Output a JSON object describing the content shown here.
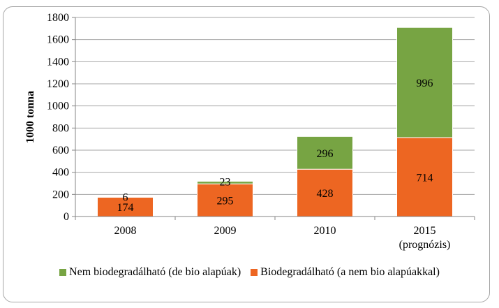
{
  "chart_data": {
    "type": "bar",
    "stacked": true,
    "categories": [
      "2008",
      "2009",
      "2010",
      "2015"
    ],
    "category_sublabels": [
      "",
      "",
      "",
      "(prognózis)"
    ],
    "series": [
      {
        "name": "Biodegradálható (a nem bio alapúakkal)",
        "values": [
          174,
          295,
          428,
          714
        ],
        "color": "#ED6622"
      },
      {
        "name": "Nem biodegradálható (de bio alapúak)",
        "values": [
          6,
          23,
          296,
          996
        ],
        "color": "#77A443"
      }
    ],
    "legend_order": [
      1,
      0
    ],
    "ylabel": "1000 tonna",
    "xlabel": "",
    "ylim": [
      0,
      1800
    ],
    "yticks": [
      0,
      200,
      400,
      600,
      800,
      1000,
      1200,
      1400,
      1600,
      1800
    ],
    "grid": true,
    "legend_position": "bottom"
  }
}
